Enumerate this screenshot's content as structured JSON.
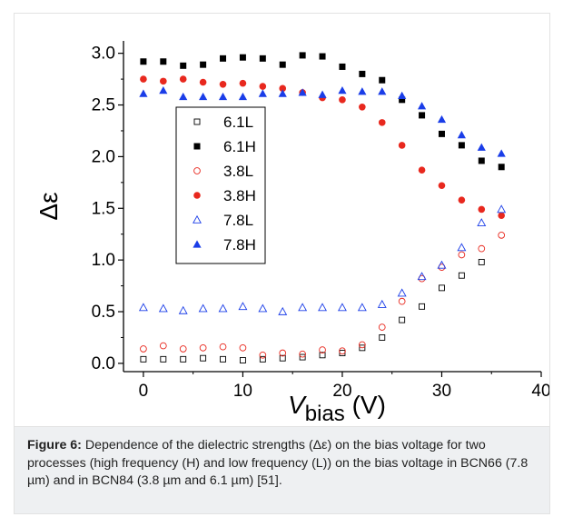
{
  "figure": {
    "caption_label": "Figure 6:",
    "caption_text": "Dependence of the dielectric strengths (Δε) on the bias voltage for two processes (high frequency (H) and low frequency (L)) on the bias voltage in BCN66 (7.8 µm) and in BCN84 (3.8 µm and 6.1 µm) [51]."
  },
  "chart_data": {
    "type": "scatter",
    "title": "",
    "xlabel_main": "V",
    "xlabel_sub": "bias",
    "xlabel_unit": " (V)",
    "ylabel": "Δε",
    "xlim": [
      -2,
      40
    ],
    "ylim": [
      -0.08,
      3.12
    ],
    "x_ticks": [
      0,
      10,
      20,
      30,
      40
    ],
    "y_ticks": [
      0.0,
      0.5,
      1.0,
      1.5,
      2.0,
      2.5,
      3.0
    ],
    "grid": false,
    "legend_position": "left",
    "series": [
      {
        "name": "6.1L",
        "marker": "square-open",
        "color": "#000000",
        "x": [
          0,
          2,
          4,
          6,
          8,
          10,
          12,
          14,
          16,
          18,
          20,
          22,
          24,
          26,
          28,
          30,
          32,
          34
        ],
        "y": [
          0.04,
          0.04,
          0.04,
          0.05,
          0.04,
          0.03,
          0.04,
          0.05,
          0.06,
          0.08,
          0.1,
          0.15,
          0.25,
          0.42,
          0.55,
          0.73,
          0.85,
          0.98
        ]
      },
      {
        "name": "6.1H",
        "marker": "square-filled",
        "color": "#000000",
        "x": [
          0,
          2,
          4,
          6,
          8,
          10,
          12,
          14,
          16,
          18,
          20,
          22,
          24,
          26,
          28,
          30,
          32,
          34,
          36
        ],
        "y": [
          2.92,
          2.92,
          2.88,
          2.89,
          2.95,
          2.96,
          2.95,
          2.89,
          2.98,
          2.97,
          2.87,
          2.8,
          2.74,
          2.55,
          2.4,
          2.22,
          2.11,
          1.96,
          1.9
        ]
      },
      {
        "name": "3.8L",
        "marker": "circle-open",
        "color": "#e8281e",
        "x": [
          0,
          2,
          4,
          6,
          8,
          10,
          12,
          14,
          16,
          18,
          20,
          22,
          24,
          26,
          28,
          30,
          32,
          34,
          36
        ],
        "y": [
          0.14,
          0.17,
          0.14,
          0.15,
          0.16,
          0.15,
          0.08,
          0.1,
          0.09,
          0.13,
          0.12,
          0.18,
          0.35,
          0.6,
          0.82,
          0.93,
          1.05,
          1.11,
          1.24
        ]
      },
      {
        "name": "3.8H",
        "marker": "circle-filled",
        "color": "#e8281e",
        "x": [
          0,
          2,
          4,
          6,
          8,
          10,
          12,
          14,
          16,
          18,
          20,
          22,
          24,
          26,
          28,
          30,
          32,
          34,
          36
        ],
        "y": [
          2.75,
          2.73,
          2.75,
          2.72,
          2.7,
          2.71,
          2.68,
          2.66,
          2.62,
          2.57,
          2.55,
          2.48,
          2.33,
          2.11,
          1.87,
          1.72,
          1.58,
          1.49,
          1.43
        ]
      },
      {
        "name": "7.8L",
        "marker": "triangle-open",
        "color": "#1a3de8",
        "x": [
          0,
          2,
          4,
          6,
          8,
          10,
          12,
          14,
          16,
          18,
          20,
          22,
          24,
          26,
          28,
          30,
          32,
          34,
          36
        ],
        "y": [
          0.54,
          0.53,
          0.51,
          0.53,
          0.53,
          0.55,
          0.53,
          0.5,
          0.54,
          0.54,
          0.54,
          0.54,
          0.57,
          0.68,
          0.84,
          0.95,
          1.12,
          1.36,
          1.49
        ]
      },
      {
        "name": "7.8H",
        "marker": "triangle-filled",
        "color": "#1a3de8",
        "x": [
          0,
          2,
          4,
          6,
          8,
          10,
          12,
          14,
          16,
          18,
          20,
          22,
          24,
          26,
          28,
          30,
          32,
          34,
          36
        ],
        "y": [
          2.61,
          2.64,
          2.58,
          2.58,
          2.58,
          2.58,
          2.61,
          2.61,
          2.62,
          2.6,
          2.64,
          2.63,
          2.63,
          2.59,
          2.49,
          2.36,
          2.21,
          2.09,
          2.03
        ]
      }
    ]
  }
}
